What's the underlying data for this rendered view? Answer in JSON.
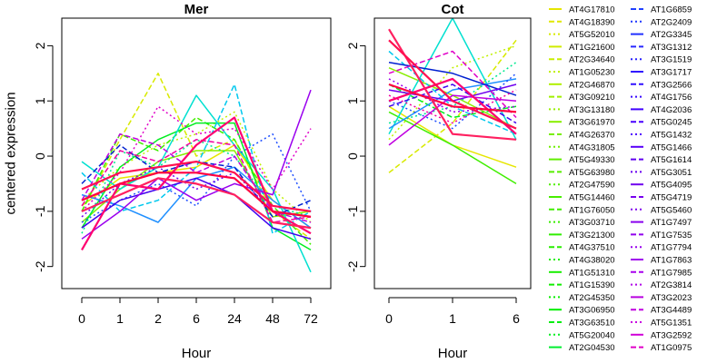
{
  "chart_data": [
    {
      "type": "line",
      "title": "Mer",
      "xlabel": "Hour",
      "ylabel": "centered expression",
      "categories": [
        "0",
        "1",
        "2",
        "6",
        "24",
        "48",
        "72"
      ],
      "ylim": [
        -2.4,
        2.5
      ],
      "yticks": [
        "-2",
        "-1",
        "0",
        "1",
        "2"
      ],
      "series": [
        {
          "color": "#e6e600",
          "dash": "solid",
          "values": [
            -0.9,
            -0.4,
            -0.3,
            -0.2,
            0.2,
            -0.8,
            -1.3
          ]
        },
        {
          "color": "#d8ea00",
          "dash": "dashed",
          "values": [
            -1.0,
            0.3,
            1.5,
            0.0,
            0.3,
            -1.0,
            -1.5
          ]
        },
        {
          "color": "#c0f000",
          "dash": "dotted",
          "values": [
            -0.8,
            -0.2,
            0.2,
            0.4,
            0.8,
            -0.6,
            -1.2
          ]
        },
        {
          "color": "#88ee00",
          "dash": "solid",
          "values": [
            -1.2,
            -0.6,
            -0.1,
            0.1,
            0.1,
            -1.1,
            -1.0
          ]
        },
        {
          "color": "#40ee00",
          "dash": "dashed",
          "values": [
            -1.0,
            0.4,
            0.1,
            0.7,
            0.3,
            -0.9,
            -1.6
          ]
        },
        {
          "color": "#00ee20",
          "dash": "solid",
          "values": [
            -1.3,
            -0.2,
            0.3,
            0.6,
            0.6,
            -1.3,
            -1.7
          ]
        },
        {
          "color": "#00e890",
          "dash": "dotted",
          "values": [
            -1.4,
            0.1,
            -0.2,
            0.3,
            0.0,
            -0.9,
            -1.1
          ]
        },
        {
          "color": "#00e0d0",
          "dash": "solid",
          "values": [
            -0.1,
            -0.6,
            -0.2,
            1.1,
            0.2,
            -0.6,
            -2.1
          ]
        },
        {
          "color": "#00c8ee",
          "dash": "dashed",
          "values": [
            -0.3,
            -1.0,
            -0.8,
            -0.2,
            1.3,
            -1.4,
            -1.0
          ]
        },
        {
          "color": "#2090ff",
          "dash": "solid",
          "values": [
            -0.7,
            -0.9,
            -1.2,
            -0.4,
            -0.2,
            -0.8,
            -1.3
          ]
        },
        {
          "color": "#2050ff",
          "dash": "dotted",
          "values": [
            -1.2,
            -0.8,
            -0.5,
            -0.9,
            0.0,
            0.4,
            -1.0
          ]
        },
        {
          "color": "#0020d0",
          "dash": "dashed",
          "values": [
            -0.5,
            0.2,
            -0.3,
            -0.1,
            -0.2,
            -1.1,
            -0.8
          ]
        },
        {
          "color": "#4000ee",
          "dash": "solid",
          "values": [
            -1.3,
            -0.8,
            -0.6,
            -0.4,
            -0.7,
            -1.3,
            -1.5
          ]
        },
        {
          "color": "#7000ee",
          "dash": "dotted",
          "values": [
            -1.1,
            -0.5,
            -0.2,
            -0.6,
            -0.3,
            -1.0,
            -1.4
          ]
        },
        {
          "color": "#9a00ee",
          "dash": "solid",
          "values": [
            -1.5,
            -1.0,
            -0.4,
            -0.8,
            -0.5,
            -0.7,
            1.2
          ]
        },
        {
          "color": "#c000e0",
          "dash": "dashed",
          "values": [
            -0.8,
            0.4,
            0.2,
            -0.3,
            0.0,
            -1.0,
            -1.2
          ]
        },
        {
          "color": "#e000c8",
          "dash": "dotted",
          "values": [
            -1.0,
            -0.3,
            0.9,
            0.4,
            0.5,
            -0.6,
            0.5
          ]
        },
        {
          "color": "#f000a0",
          "dash": "dashed",
          "values": [
            -0.9,
            0.1,
            -0.1,
            0.3,
            0.2,
            -1.2,
            -1.1
          ]
        },
        {
          "color": "#ff0070",
          "dash": "solid",
          "values": [
            -1.7,
            -0.5,
            -0.6,
            0.2,
            0.7,
            -1.0,
            -1.4
          ]
        },
        {
          "color": "#ff0040",
          "dash": "solid",
          "values": [
            -0.8,
            -0.5,
            -0.3,
            -0.3,
            -0.4,
            -1.0,
            -1.1
          ]
        },
        {
          "color": "#ff2060",
          "dash": "solid",
          "values": [
            -1.0,
            -0.7,
            -0.4,
            -0.5,
            -0.7,
            -1.2,
            -1.3
          ]
        },
        {
          "color": "#ff1050",
          "dash": "solid",
          "values": [
            -0.6,
            -0.3,
            -0.2,
            -0.1,
            -0.3,
            -0.9,
            -1.0
          ]
        }
      ]
    },
    {
      "type": "line",
      "title": "Cot",
      "xlabel": "Hour",
      "ylabel": "",
      "categories": [
        "0",
        "1",
        "6"
      ],
      "ylim": [
        -2.4,
        2.5
      ],
      "yticks": [
        "-2",
        "-1",
        "0",
        "1",
        "2"
      ],
      "series": [
        {
          "color": "#e6e600",
          "dash": "solid",
          "values": [
            0.9,
            0.2,
            -0.2
          ]
        },
        {
          "color": "#d8ea00",
          "dash": "dashed",
          "values": [
            -0.3,
            0.6,
            2.1
          ]
        },
        {
          "color": "#c0f000",
          "dash": "dotted",
          "values": [
            0.3,
            1.6,
            2.0
          ]
        },
        {
          "color": "#88ee00",
          "dash": "solid",
          "values": [
            1.6,
            1.1,
            0.5
          ]
        },
        {
          "color": "#40ee00",
          "dash": "solid",
          "values": [
            0.8,
            0.2,
            -0.5
          ]
        },
        {
          "color": "#00ee20",
          "dash": "dashed",
          "values": [
            1.3,
            0.7,
            0.9
          ]
        },
        {
          "color": "#00e890",
          "dash": "dotted",
          "values": [
            0.6,
            0.9,
            1.7
          ]
        },
        {
          "color": "#00e0d0",
          "dash": "solid",
          "values": [
            0.4,
            2.5,
            0.3
          ]
        },
        {
          "color": "#00c8ee",
          "dash": "dashed",
          "values": [
            1.9,
            0.9,
            0.4
          ]
        },
        {
          "color": "#2090ff",
          "dash": "solid",
          "values": [
            0.5,
            1.2,
            1.4
          ]
        },
        {
          "color": "#2050ff",
          "dash": "dotted",
          "values": [
            1.0,
            0.5,
            1.5
          ]
        },
        {
          "color": "#0020d0",
          "dash": "solid",
          "values": [
            1.7,
            1.5,
            1.1
          ]
        },
        {
          "color": "#4000ee",
          "dash": "dashed",
          "values": [
            0.9,
            1.3,
            0.6
          ]
        },
        {
          "color": "#7000ee",
          "dash": "solid",
          "values": [
            1.2,
            1.0,
            1.3
          ]
        },
        {
          "color": "#9a00ee",
          "dash": "dotted",
          "values": [
            1.4,
            0.8,
            0.9
          ]
        },
        {
          "color": "#c000e0",
          "dash": "solid",
          "values": [
            0.2,
            1.1,
            1.0
          ]
        },
        {
          "color": "#e000c8",
          "dash": "dashed",
          "values": [
            1.5,
            1.9,
            0.7
          ]
        },
        {
          "color": "#f000a0",
          "dash": "dotted",
          "values": [
            1.1,
            0.6,
            1.2
          ]
        },
        {
          "color": "#ff0070",
          "dash": "solid",
          "values": [
            1.0,
            1.4,
            0.4
          ]
        },
        {
          "color": "#ff0040",
          "dash": "solid",
          "values": [
            1.3,
            0.9,
            0.8
          ]
        },
        {
          "color": "#ff2060",
          "dash": "solid",
          "values": [
            2.3,
            0.4,
            0.3
          ]
        },
        {
          "color": "#ff1050",
          "dash": "solid",
          "values": [
            2.1,
            1.0,
            0.5
          ]
        }
      ]
    }
  ],
  "legend": {
    "columns": [
      [
        {
          "label": "AT4G17810",
          "color": "#e6e600",
          "dash": "solid"
        },
        {
          "label": "AT4G18390",
          "color": "#e0e800",
          "dash": "dashed"
        },
        {
          "label": "AT5G52010",
          "color": "#d8ea00",
          "dash": "dotted"
        },
        {
          "label": "AT1G21600",
          "color": "#d0ec00",
          "dash": "solid"
        },
        {
          "label": "AT2G34640",
          "color": "#c8ee00",
          "dash": "dashed"
        },
        {
          "label": "AT1G05230",
          "color": "#c0f000",
          "dash": "dotted"
        },
        {
          "label": "AT2G46870",
          "color": "#b0f000",
          "dash": "solid"
        },
        {
          "label": "AT3G09210",
          "color": "#a0f000",
          "dash": "dashed"
        },
        {
          "label": "AT3G13180",
          "color": "#98f000",
          "dash": "dotted"
        },
        {
          "label": "AT3G61970",
          "color": "#88ee00",
          "dash": "solid"
        },
        {
          "label": "AT4G26370",
          "color": "#78ee00",
          "dash": "dashed"
        },
        {
          "label": "AT4G31805",
          "color": "#70ee00",
          "dash": "dotted"
        },
        {
          "label": "AT5G49330",
          "color": "#60ee00",
          "dash": "solid"
        },
        {
          "label": "AT5G63980",
          "color": "#58ee00",
          "dash": "dashed"
        },
        {
          "label": "AT2G47590",
          "color": "#50ee00",
          "dash": "dotted"
        },
        {
          "label": "AT5G14460",
          "color": "#48ee00",
          "dash": "solid"
        },
        {
          "label": "AT1G76050",
          "color": "#40ee00",
          "dash": "dashed"
        },
        {
          "label": "AT3G03710",
          "color": "#38ee00",
          "dash": "dotted"
        },
        {
          "label": "AT3G21300",
          "color": "#30ee00",
          "dash": "solid"
        },
        {
          "label": "AT4G37510",
          "color": "#28ee00",
          "dash": "dashed"
        },
        {
          "label": "AT4G38020",
          "color": "#20ee00",
          "dash": "dotted"
        },
        {
          "label": "AT1G51310",
          "color": "#18ee00",
          "dash": "solid"
        },
        {
          "label": "AT1G15390",
          "color": "#10ee00",
          "dash": "dashed"
        },
        {
          "label": "AT2G45350",
          "color": "#08ee00",
          "dash": "dotted"
        },
        {
          "label": "AT3G06950",
          "color": "#00ee00",
          "dash": "solid"
        },
        {
          "label": "AT3G63510",
          "color": "#00ee10",
          "dash": "dashed"
        },
        {
          "label": "AT5G20040",
          "color": "#00ee20",
          "dash": "dotted"
        },
        {
          "label": "AT2G04530",
          "color": "#00ee30",
          "dash": "solid"
        }
      ],
      [
        {
          "label": "AT1G6859",
          "color": "#2040ff",
          "dash": "dashed"
        },
        {
          "label": "AT2G2409",
          "color": "#2038ff",
          "dash": "dotted"
        },
        {
          "label": "AT2G3345",
          "color": "#2030ff",
          "dash": "solid"
        },
        {
          "label": "AT3G1312",
          "color": "#2828ff",
          "dash": "dashed"
        },
        {
          "label": "AT3G1519",
          "color": "#2820ff",
          "dash": "dotted"
        },
        {
          "label": "AT3G1717",
          "color": "#3018ff",
          "dash": "solid"
        },
        {
          "label": "AT3G2566",
          "color": "#3010ff",
          "dash": "dashed"
        },
        {
          "label": "AT4G1756",
          "color": "#3808ff",
          "dash": "dotted"
        },
        {
          "label": "AT4G2036",
          "color": "#4000ff",
          "dash": "solid"
        },
        {
          "label": "AT5G0245",
          "color": "#4800ff",
          "dash": "dashed"
        },
        {
          "label": "AT5G1432",
          "color": "#5000ff",
          "dash": "dotted"
        },
        {
          "label": "AT5G1466",
          "color": "#5800f8",
          "dash": "solid"
        },
        {
          "label": "AT5G1614",
          "color": "#6000f0",
          "dash": "dashed"
        },
        {
          "label": "AT5G3051",
          "color": "#6800f0",
          "dash": "dotted"
        },
        {
          "label": "AT5G4095",
          "color": "#7000ee",
          "dash": "solid"
        },
        {
          "label": "AT5G4719",
          "color": "#7800ee",
          "dash": "dashed"
        },
        {
          "label": "AT5G5460",
          "color": "#8000ee",
          "dash": "dotted"
        },
        {
          "label": "AT1G7497",
          "color": "#8800ee",
          "dash": "solid"
        },
        {
          "label": "AT1G7535",
          "color": "#9000ee",
          "dash": "dashed"
        },
        {
          "label": "AT1G7794",
          "color": "#9800ee",
          "dash": "dotted"
        },
        {
          "label": "AT1G7863",
          "color": "#a000ee",
          "dash": "solid"
        },
        {
          "label": "AT1G7985",
          "color": "#a800ee",
          "dash": "dashed"
        },
        {
          "label": "AT2G3814",
          "color": "#b000e8",
          "dash": "dotted"
        },
        {
          "label": "AT3G2023",
          "color": "#b800e0",
          "dash": "solid"
        },
        {
          "label": "AT3G4489",
          "color": "#c000e0",
          "dash": "dashed"
        },
        {
          "label": "AT5G1351",
          "color": "#c800e0",
          "dash": "dotted"
        },
        {
          "label": "AT3G2592",
          "color": "#d000d8",
          "dash": "solid"
        },
        {
          "label": "AT1G0975",
          "color": "#e000c8",
          "dash": "dashed"
        }
      ]
    ]
  }
}
